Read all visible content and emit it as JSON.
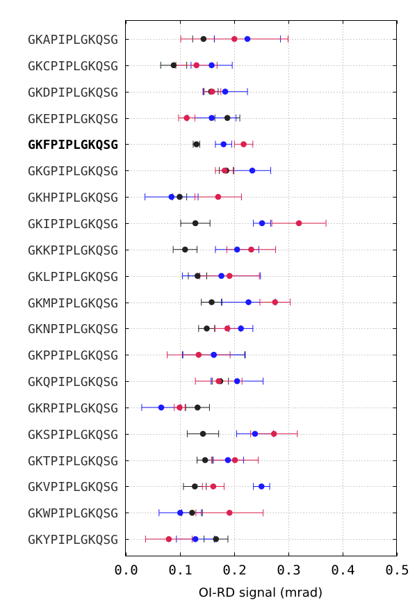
{
  "chart_data": {
    "type": "scatter",
    "title": "",
    "xlabel": "OI-RD signal (mrad)",
    "ylabel": "",
    "xlim": [
      0.0,
      0.5
    ],
    "x_ticks": [
      "0.0",
      "0.1",
      "0.2",
      "0.3",
      "0.4",
      "0.5"
    ],
    "grid": true,
    "legend": "none",
    "highlighted_category": "GKFPIPLGKQSG",
    "categories": [
      "GKAPIPLGKQSG",
      "GKCPIPLGKQSG",
      "GKDPIPLGKQSG",
      "GKEPIPLGKQSG",
      "GKFPIPLGKQSG",
      "GKGPIPLGKQSG",
      "GKHPIPLGKQSG",
      "GKIPIPLGKQSG",
      "GKKPIPLGKQSG",
      "GKLPIPLGKQSG",
      "GKMPIPLGKQSG",
      "GKNPIPLGKQSG",
      "GKPPIPLGKQSG",
      "GKQPIPLGKQSG",
      "GKRPIPLGKQSG",
      "GKSPIPLGKQSG",
      "GKTPIPLGKQSG",
      "GKVPIPLGKQSG",
      "GKWPIPLGKQSG",
      "GKYPIPLGKQSG"
    ],
    "series": [
      {
        "color": "#222222",
        "values": [
          0.144,
          0.089,
          0.158,
          0.188,
          0.131,
          0.186,
          0.1,
          0.129,
          0.11,
          0.133,
          0.159,
          0.15,
          0.163,
          0.175,
          0.133,
          0.143,
          0.147,
          0.128,
          0.123,
          0.167
        ],
        "errors": [
          0.02,
          0.024,
          0.013,
          0.023,
          0.006,
          0.013,
          0.013,
          0.027,
          0.022,
          0.017,
          0.019,
          0.015,
          0.058,
          0.015,
          0.022,
          0.029,
          0.015,
          0.021,
          0.019,
          0.022
        ]
      },
      {
        "color": "#1a1aff",
        "values": [
          0.225,
          0.159,
          0.184,
          0.159,
          0.181,
          0.234,
          0.085,
          0.252,
          0.206,
          0.177,
          0.227,
          0.213,
          0.163,
          0.206,
          0.066,
          0.239,
          0.189,
          0.251,
          0.101,
          0.129
        ],
        "errors": [
          0.061,
          0.038,
          0.041,
          0.045,
          0.015,
          0.034,
          0.049,
          0.016,
          0.04,
          0.072,
          0.05,
          0.022,
          0.057,
          0.048,
          0.036,
          0.034,
          0.029,
          0.015,
          0.039,
          0.035
        ]
      },
      {
        "color": "#dc2050",
        "values": [
          0.201,
          0.131,
          0.16,
          0.113,
          0.218,
          0.183,
          0.171,
          0.32,
          0.232,
          0.192,
          0.276,
          0.188,
          0.135,
          0.172,
          0.1,
          0.274,
          0.202,
          0.162,
          0.192,
          0.08
        ],
        "errors": [
          0.099,
          0.038,
          0.016,
          0.015,
          0.017,
          0.017,
          0.043,
          0.05,
          0.045,
          0.055,
          0.028,
          0.024,
          0.058,
          0.043,
          0.01,
          0.043,
          0.043,
          0.02,
          0.062,
          0.043
        ]
      }
    ]
  }
}
